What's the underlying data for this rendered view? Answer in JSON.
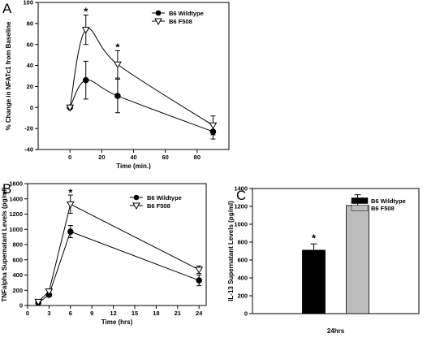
{
  "chart_data": [
    {
      "panel": "A",
      "type": "line",
      "xlabel": "Time (min.)",
      "ylabel": "% Change in NFATc1 from Baseline",
      "xlim": [
        -20,
        100
      ],
      "ylim": [
        -40,
        100
      ],
      "xticks": [
        0,
        20,
        40,
        60,
        80
      ],
      "yticks": [
        -40,
        -20,
        0,
        20,
        40,
        60,
        80,
        100
      ],
      "smooth": true,
      "legend_position": "top-right",
      "series": [
        {
          "name": "B6 Wildtype",
          "marker": "filled-circle",
          "x": [
            0,
            10,
            30,
            90
          ],
          "y": [
            0,
            26,
            11,
            -23
          ],
          "err": [
            0,
            18,
            16,
            7
          ]
        },
        {
          "name": "B6 F508",
          "marker": "open-triangle-down",
          "x": [
            0,
            10,
            30,
            90
          ],
          "y": [
            0,
            74,
            41,
            -17
          ],
          "err": [
            0,
            14,
            13,
            9
          ]
        }
      ],
      "annotations": [
        {
          "text": "*",
          "x": 10,
          "y": 92
        },
        {
          "text": "*",
          "x": 30,
          "y": 58
        }
      ]
    },
    {
      "panel": "B",
      "type": "line",
      "xlabel": "Time (hrs)",
      "ylabel": "TNFalpha Supernatant Levels (pg/ml)",
      "xlim": [
        0,
        25
      ],
      "ylim": [
        0,
        1600
      ],
      "xticks": [
        0,
        3,
        6,
        9,
        12,
        15,
        18,
        21,
        24
      ],
      "yticks": [
        0,
        200,
        400,
        600,
        800,
        1000,
        1200,
        1400,
        1600
      ],
      "legend_position": "top-right",
      "series": [
        {
          "name": "B6 Wildtype",
          "marker": "filled-circle",
          "x": [
            1.5,
            3,
            6,
            24
          ],
          "y": [
            35,
            140,
            970,
            330
          ],
          "err": [
            15,
            25,
            80,
            70
          ]
        },
        {
          "name": "B6 F508",
          "marker": "open-triangle-down",
          "x": [
            1.5,
            3,
            6,
            24
          ],
          "y": [
            50,
            185,
            1330,
            470
          ],
          "err": [
            15,
            25,
            120,
            50
          ]
        }
      ],
      "annotations": [
        {
          "text": "*",
          "x": 6,
          "y": 1490
        }
      ]
    },
    {
      "panel": "C",
      "type": "bar",
      "xlabel": "24hrs",
      "ylabel": "IL-13 Supernatant Levels (pg/ml)",
      "ylim": [
        0,
        1400
      ],
      "yticks": [
        0,
        200,
        400,
        600,
        800,
        1000,
        1200,
        1400
      ],
      "legend_position": "top-right",
      "categories": [
        "24hrs"
      ],
      "series": [
        {
          "name": "B6 Wildtype",
          "color": "#000000",
          "values": [
            710
          ],
          "err": [
            70
          ]
        },
        {
          "name": "B6 F508",
          "color": "#bcbcbc",
          "values": [
            1210
          ],
          "err": [
            120
          ]
        }
      ],
      "annotations": [
        {
          "text": "*",
          "series": 0,
          "y": 850
        }
      ]
    }
  ]
}
